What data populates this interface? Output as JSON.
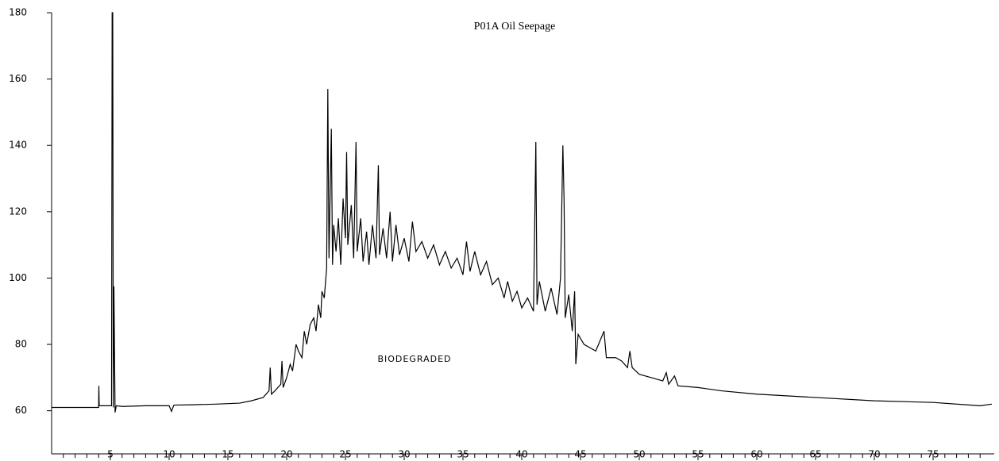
{
  "chart_data": {
    "type": "line",
    "title": "P01A Oil Seepage",
    "annotation": "BIODEGRADED",
    "xlim": [
      0,
      80
    ],
    "ylim": [
      47,
      180
    ],
    "xticks": [
      5,
      10,
      15,
      20,
      25,
      30,
      35,
      40,
      45,
      50,
      55,
      60,
      65,
      70,
      75
    ],
    "xminorticks": [
      1,
      2,
      3,
      4,
      5,
      6,
      7,
      8,
      9,
      10,
      11,
      12,
      13,
      14,
      15,
      16,
      17,
      18,
      19,
      20,
      21,
      22,
      23,
      24,
      25,
      26,
      27,
      28,
      29,
      30,
      31,
      32,
      33,
      34,
      35,
      36,
      37,
      38,
      39,
      40,
      41,
      42,
      43,
      44,
      45,
      46,
      47,
      48,
      49,
      50,
      51,
      52,
      53,
      54,
      55,
      56,
      57,
      58,
      59,
      60,
      61,
      62,
      63,
      64,
      65,
      66,
      67,
      68,
      69,
      70,
      71,
      72,
      73,
      74,
      75,
      76,
      77,
      78,
      79
    ],
    "yticks": [
      60,
      80,
      100,
      120,
      140,
      160,
      180
    ],
    "x": [
      0,
      4,
      4.02,
      4.05,
      5.1,
      5.15,
      5.2,
      5.25,
      5.3,
      5.4,
      5.5,
      6,
      8,
      10,
      10.2,
      10.4,
      12,
      14,
      16,
      17,
      18,
      18.5,
      18.6,
      18.7,
      19,
      19.5,
      19.6,
      19.7,
      20,
      20.3,
      20.5,
      20.8,
      21,
      21.3,
      21.5,
      21.7,
      22,
      22.3,
      22.5,
      22.7,
      22.9,
      23,
      23.2,
      23.4,
      23.5,
      23.6,
      23.8,
      23.9,
      24,
      24.2,
      24.4,
      24.6,
      24.8,
      25,
      25.1,
      25.2,
      25.5,
      25.7,
      25.9,
      26,
      26.3,
      26.5,
      26.8,
      27,
      27.3,
      27.6,
      27.8,
      27.9,
      28.2,
      28.5,
      28.8,
      29,
      29.3,
      29.6,
      30,
      30.4,
      30.7,
      31,
      31.5,
      32,
      32.5,
      33,
      33.5,
      34,
      34.5,
      35,
      35.3,
      35.6,
      36,
      36.5,
      37,
      37.5,
      38,
      38.5,
      38.8,
      39.2,
      39.6,
      40,
      40.5,
      41,
      41.2,
      41.3,
      41.5,
      42,
      42.5,
      43,
      43.3,
      43.5,
      43.6,
      43.7,
      44,
      44.3,
      44.5,
      44.6,
      44.8,
      45.3,
      45.8,
      46.3,
      47,
      47.2,
      48,
      48.5,
      49,
      49.2,
      49.4,
      50,
      51,
      52,
      52.3,
      52.5,
      53,
      53.3,
      55,
      57,
      60,
      65,
      70,
      75,
      79,
      80
    ],
    "series": [
      {
        "color": "#000000",
        "values": [
          61,
          61,
          67.5,
          61.5,
          61.5,
          180,
          180,
          61,
          97.5,
          59.5,
          61.5,
          61.3,
          61.5,
          61.5,
          59.8,
          61.7,
          61.8,
          62,
          62.3,
          63,
          64,
          66,
          73,
          65,
          66,
          68,
          75,
          67,
          70,
          74,
          72,
          80,
          78,
          76,
          84,
          80,
          86,
          88,
          84,
          92,
          88,
          96,
          94,
          103,
          157,
          106,
          145,
          104,
          116,
          108,
          118,
          104,
          124,
          112,
          138,
          110,
          122,
          106,
          141,
          108,
          118,
          105,
          114,
          104,
          116,
          106,
          134,
          107,
          115,
          106,
          120,
          105,
          116,
          107,
          112,
          105,
          117,
          108,
          111,
          106,
          110,
          104,
          108,
          103,
          106,
          101,
          111,
          102,
          108,
          101,
          105,
          98,
          100,
          94,
          99,
          93,
          96,
          91,
          94,
          90,
          141,
          92,
          99,
          90,
          97,
          89,
          100,
          140,
          124,
          88,
          95,
          84,
          96,
          74,
          83,
          80,
          79,
          78,
          84,
          76,
          76,
          75,
          73,
          78,
          73,
          71,
          70,
          69,
          71.5,
          68,
          70.5,
          67.5,
          67,
          66,
          65,
          64,
          63,
          62.5,
          61.5,
          62
        ]
      }
    ]
  }
}
